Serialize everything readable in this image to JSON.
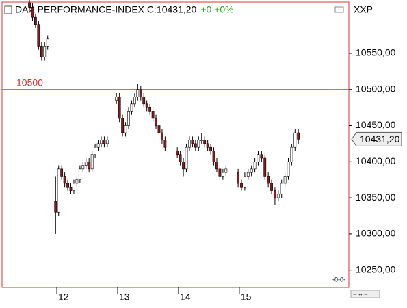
{
  "chart_data": {
    "type": "candlestick",
    "title": "DAX PERFORMANCE-INDEX C:10431,20",
    "change": "+0 +0%",
    "symbol": "XXP",
    "hline": 10500,
    "last_value_label": "10431,20",
    "up_color": "#ffffff",
    "down_color": "#8b1a1a",
    "frame_color": "#e03030",
    "xlim": [
      11.1,
      16.8
    ],
    "xticks": [
      12,
      13,
      14,
      15
    ],
    "ylim": [
      10226,
      10621
    ],
    "yticks": [
      {
        "value": 10250,
        "label": "10250,00"
      },
      {
        "value": 10300,
        "label": "10300,00"
      },
      {
        "value": 10350,
        "label": "10350,00"
      },
      {
        "value": 10400,
        "label": "10400,00"
      },
      {
        "value": 10450,
        "label": "10450,00"
      },
      {
        "value": 10500,
        "label": "10500,00"
      },
      {
        "value": 10550,
        "label": "10550,00"
      }
    ],
    "x": [
      11.55,
      11.6,
      11.65,
      11.7,
      11.75,
      11.8,
      11.85,
      11.98,
      12.03,
      12.08,
      12.13,
      12.18,
      12.23,
      12.28,
      12.33,
      12.38,
      12.43,
      12.48,
      12.53,
      12.58,
      12.63,
      12.68,
      12.73,
      12.78,
      12.83,
      12.98,
      13.03,
      13.08,
      13.13,
      13.18,
      13.23,
      13.28,
      13.33,
      13.38,
      13.43,
      13.48,
      13.53,
      13.58,
      13.63,
      13.68,
      13.73,
      13.78,
      13.98,
      14.03,
      14.08,
      14.13,
      14.18,
      14.23,
      14.28,
      14.33,
      14.38,
      14.43,
      14.48,
      14.53,
      14.58,
      14.63,
      14.68,
      14.73,
      14.78,
      14.98,
      15.035,
      15.09,
      15.145,
      15.2,
      15.255,
      15.31,
      15.365,
      15.42,
      15.475,
      15.53,
      15.585,
      15.64,
      15.695,
      15.75,
      15.805,
      15.86,
      15.915,
      15.97
    ],
    "open": [
      10620,
      10614,
      10600,
      10590,
      10560,
      10545,
      10560,
      10345,
      10330,
      10390,
      10380,
      10370,
      10365,
      10360,
      10370,
      10375,
      10390,
      10395,
      10400,
      10390,
      10410,
      10420,
      10425,
      10430,
      10425,
      10485,
      10490,
      10460,
      10440,
      10450,
      10470,
      10480,
      10490,
      10500,
      10490,
      10480,
      10475,
      10470,
      10460,
      10450,
      10440,
      10430,
      10415,
      10410,
      10400,
      10390,
      10420,
      10430,
      10425,
      10420,
      10430,
      10430,
      10425,
      10420,
      10415,
      10400,
      10390,
      10380,
      10385,
      10385,
      10370,
      10365,
      10380,
      10385,
      10390,
      10400,
      10410,
      10405,
      10380,
      10370,
      10360,
      10350,
      10355,
      10370,
      10380,
      10400,
      10420,
      10440
    ],
    "high": [
      10625,
      10619,
      10605,
      10595,
      10565,
      10565,
      10575,
      10380,
      10395,
      10395,
      10385,
      10375,
      10370,
      10375,
      10380,
      10395,
      10400,
      10405,
      10405,
      10415,
      10425,
      10430,
      10435,
      10435,
      10435,
      10495,
      10495,
      10465,
      10455,
      10475,
      10485,
      10495,
      10508,
      10505,
      10495,
      10485,
      10480,
      10475,
      10465,
      10455,
      10445,
      10435,
      10420,
      10415,
      10405,
      10425,
      10435,
      10435,
      10430,
      10435,
      10440,
      10435,
      10430,
      10425,
      10420,
      10405,
      10395,
      10390,
      10395,
      10390,
      10375,
      10385,
      10390,
      10395,
      10405,
      10415,
      10415,
      10410,
      10385,
      10375,
      10365,
      10360,
      10375,
      10385,
      10405,
      10425,
      10445,
      10445
    ],
    "low": [
      10609,
      10595,
      10585,
      10555,
      10540,
      10540,
      10555,
      10300,
      10325,
      10375,
      10365,
      10360,
      10355,
      10355,
      10365,
      10370,
      10385,
      10390,
      10385,
      10385,
      10405,
      10415,
      10420,
      10420,
      10420,
      10480,
      10455,
      10435,
      10435,
      10445,
      10465,
      10475,
      10485,
      10485,
      10475,
      10470,
      10465,
      10455,
      10445,
      10435,
      10425,
      10415,
      10405,
      10395,
      10380,
      10385,
      10415,
      10420,
      10415,
      10415,
      10425,
      10420,
      10415,
      10410,
      10395,
      10385,
      10375,
      10375,
      10380,
      10365,
      10360,
      10360,
      10375,
      10380,
      10385,
      10395,
      10400,
      10375,
      10365,
      10355,
      10340,
      10345,
      10350,
      10365,
      10375,
      10395,
      10415,
      10425
    ],
    "close": [
      10614,
      10600,
      10590,
      10560,
      10545,
      10560,
      10570,
      10330,
      10390,
      10380,
      10370,
      10365,
      10360,
      10370,
      10375,
      10390,
      10395,
      10400,
      10390,
      10410,
      10420,
      10425,
      10430,
      10425,
      10430,
      10490,
      10460,
      10440,
      10450,
      10470,
      10480,
      10490,
      10500,
      10490,
      10480,
      10475,
      10470,
      10460,
      10450,
      10440,
      10430,
      10420,
      10410,
      10400,
      10390,
      10420,
      10430,
      10425,
      10420,
      10430,
      10430,
      10425,
      10420,
      10415,
      10400,
      10390,
      10380,
      10385,
      10390,
      10370,
      10365,
      10380,
      10385,
      10390,
      10400,
      10410,
      10405,
      10380,
      10370,
      10360,
      10350,
      10355,
      10370,
      10380,
      10400,
      10420,
      10440,
      10431.2
    ]
  }
}
